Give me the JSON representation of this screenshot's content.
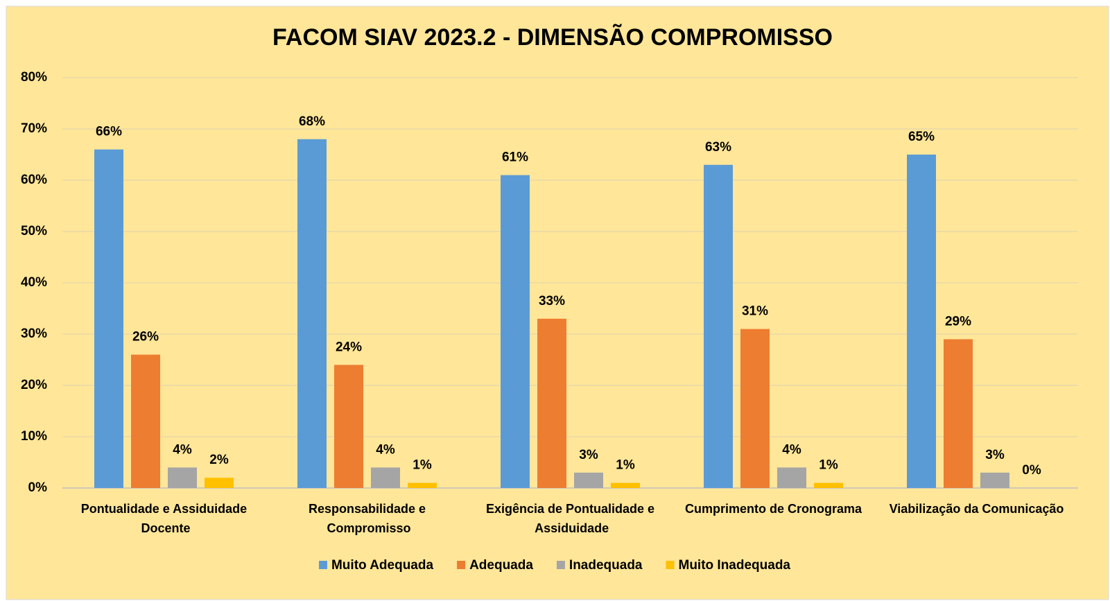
{
  "chart_data": {
    "type": "bar",
    "title": "FACOM SIAV 2023.2 - DIMENSÃO COMPROMISSO",
    "categories": [
      "Pontualidade e Assiduidade Docente",
      "Responsabilidade e Compromisso",
      "Exigência de Pontualidade e Assiduidade",
      "Cumprimento de Cronograma",
      "Viabilização da Comunicação"
    ],
    "series": [
      {
        "name": "Muito Adequada",
        "color": "#5b9bd5",
        "values": [
          66,
          68,
          61,
          63,
          65
        ],
        "value_labels": [
          "66%",
          "68%",
          "61%",
          "63%",
          "65%"
        ]
      },
      {
        "name": "Adequada",
        "color": "#ed7d31",
        "values": [
          26,
          24,
          33,
          31,
          29
        ],
        "value_labels": [
          "26%",
          "24%",
          "33%",
          "31%",
          "29%"
        ]
      },
      {
        "name": "Inadequada",
        "color": "#a5a5a5",
        "values": [
          4,
          4,
          3,
          4,
          3
        ],
        "value_labels": [
          "4%",
          "4%",
          "3%",
          "4%",
          "3%"
        ]
      },
      {
        "name": "Muito Inadequada",
        "color": "#ffc000",
        "values": [
          2,
          1,
          1,
          1,
          0
        ],
        "value_labels": [
          "2%",
          "1%",
          "1%",
          "1%",
          "0%"
        ]
      }
    ],
    "ylim": [
      0,
      80
    ],
    "yticks": [
      {
        "value": 0,
        "label": "0%"
      },
      {
        "value": 10,
        "label": "10%"
      },
      {
        "value": 20,
        "label": "20%"
      },
      {
        "value": 30,
        "label": "30%"
      },
      {
        "value": 40,
        "label": "40%"
      },
      {
        "value": 50,
        "label": "50%"
      },
      {
        "value": 60,
        "label": "60%"
      },
      {
        "value": 70,
        "label": "70%"
      },
      {
        "value": 80,
        "label": "80%"
      }
    ],
    "grid": true,
    "legend": "bottom"
  }
}
